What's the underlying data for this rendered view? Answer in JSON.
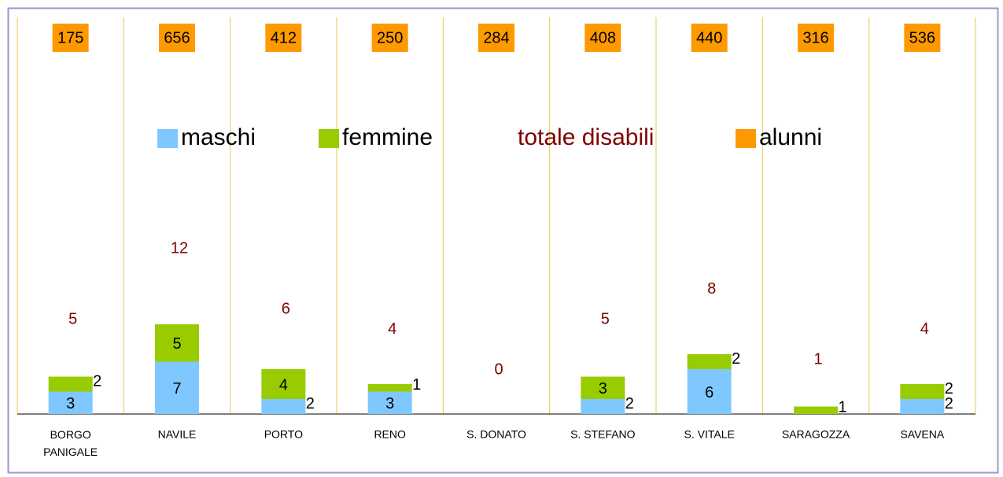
{
  "chart_data": {
    "type": "bar",
    "stacked": true,
    "categories": [
      "BORGO PANIGALE",
      "NAVILE",
      "PORTO",
      "RENO",
      "S. DONATO",
      "S. STEFANO",
      "S. VITALE",
      "SARAGOZZA",
      "SAVENA"
    ],
    "series": [
      {
        "name": "maschi",
        "color": "#7fc8ff",
        "kind": "bar",
        "values": [
          3,
          7,
          2,
          3,
          0,
          2,
          6,
          0,
          2
        ]
      },
      {
        "name": "femmine",
        "color": "#99cc00",
        "kind": "bar",
        "values": [
          2,
          5,
          4,
          1,
          0,
          3,
          2,
          1,
          2
        ]
      },
      {
        "name": "totale disabili",
        "color": "#800000",
        "kind": "label",
        "values": [
          5,
          12,
          6,
          4,
          0,
          5,
          8,
          1,
          4
        ]
      },
      {
        "name": "alunni",
        "color": "#ff9900",
        "kind": "box",
        "values": [
          175,
          656,
          412,
          250,
          284,
          408,
          440,
          316,
          536
        ]
      }
    ],
    "grid_color": "#e6c84a"
  }
}
